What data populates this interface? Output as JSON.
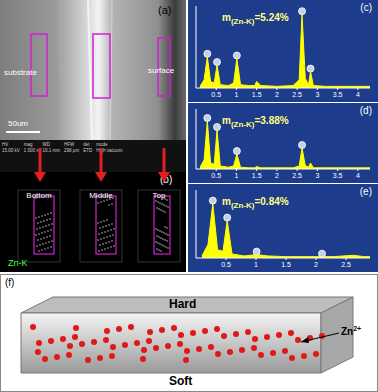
{
  "sem_image": {
    "label": "(a)",
    "texts": [
      "substrate",
      "surface"
    ],
    "scale_bar": "50um",
    "info_bar": {
      "headers": [
        "HV",
        "mag",
        "WD",
        "HFW",
        "det",
        "mode"
      ],
      "values": [
        "15.00 kV",
        "1 000 x",
        "10.1 mm",
        "298 µm",
        "ETD",
        "High vacuum"
      ]
    }
  },
  "eds_maps": {
    "label": "(b)",
    "element": "Zn-K",
    "maps": [
      "Bottom",
      "Middle",
      "Top"
    ]
  },
  "chart_data": [
    {
      "type": "area",
      "panel_label": "(c)",
      "annotation": {
        "base": "m",
        "subscript": "(Zn-K)",
        "text": "=5.24%"
      },
      "x": [
        0.1,
        0.2,
        0.28,
        0.36,
        0.45,
        0.52,
        0.6,
        0.8,
        0.93,
        1.01,
        1.1,
        1.3,
        1.45,
        1.5,
        1.6,
        2.0,
        2.4,
        2.55,
        2.62,
        2.7,
        2.78,
        2.83,
        2.9,
        3.2,
        3.6,
        4.0,
        4.3
      ],
      "values": [
        2,
        10,
        38,
        8,
        6,
        28,
        4,
        3,
        6,
        36,
        4,
        3,
        3,
        8,
        3,
        2,
        3,
        10,
        90,
        12,
        4,
        20,
        3,
        2,
        2,
        2,
        2
      ],
      "marker_x": [
        0.28,
        0.52,
        1.01,
        2.62,
        2.83
      ],
      "color": "#ffff00",
      "marker": "circle",
      "xlim": [
        0,
        4.3
      ],
      "xticks": [
        0.5,
        1,
        1.5,
        2,
        2.5,
        3,
        3.5,
        4
      ],
      "ylim": [
        0,
        100
      ],
      "tick_labels": "x",
      "grid": false
    },
    {
      "type": "area",
      "panel_label": "(d)",
      "annotation": {
        "base": "m",
        "subscript": "(Zn-K)",
        "text": "=3.88%"
      },
      "x": [
        0.1,
        0.2,
        0.28,
        0.36,
        0.45,
        0.52,
        0.6,
        0.8,
        0.93,
        1.01,
        1.1,
        1.3,
        1.45,
        1.5,
        1.6,
        2.0,
        2.4,
        2.55,
        2.62,
        2.7,
        2.78,
        2.83,
        2.9,
        3.2,
        3.6,
        4.0,
        4.3
      ],
      "values": [
        3,
        15,
        80,
        10,
        8,
        65,
        5,
        3,
        5,
        25,
        3,
        2,
        2,
        4,
        2,
        2,
        2,
        5,
        35,
        6,
        3,
        10,
        2,
        2,
        2,
        2,
        2
      ],
      "marker_x": [
        0.28,
        0.52,
        1.01,
        2.62
      ],
      "color": "#ffff00",
      "marker": "circle",
      "xlim": [
        0,
        4.3
      ],
      "xticks": [
        0.5,
        1,
        1.5,
        2,
        2.5,
        3,
        3.5,
        4
      ],
      "ylim": [
        0,
        100
      ],
      "tick_labels": "x",
      "grid": false
    },
    {
      "type": "area",
      "panel_label": "(e)",
      "annotation": {
        "base": "m",
        "subscript": "(Zn-K)",
        "text": "=0.84%"
      },
      "x": [
        0.1,
        0.2,
        0.28,
        0.36,
        0.45,
        0.52,
        0.6,
        0.8,
        1.01,
        1.2,
        1.5,
        1.8,
        2.0,
        2.1,
        2.3,
        2.62,
        2.8,
        2.9
      ],
      "values": [
        3,
        20,
        80,
        12,
        10,
        55,
        6,
        3,
        5,
        3,
        2,
        2,
        2,
        2,
        2,
        4,
        2,
        2
      ],
      "marker_x": [
        0.28,
        0.52,
        1.01,
        2.1
      ],
      "color": "#ffff00",
      "marker": "circle",
      "xlim": [
        0,
        2.9
      ],
      "xticks": [
        0.5,
        1,
        1.5,
        2,
        2.5
      ],
      "ylim": [
        0,
        100
      ],
      "tick_labels": "x",
      "grid": false
    }
  ],
  "schematic": {
    "label": "(f)",
    "top": "Hard",
    "bottom": "Soft",
    "ion": {
      "base": "Zn",
      "superscript": "2+"
    }
  }
}
